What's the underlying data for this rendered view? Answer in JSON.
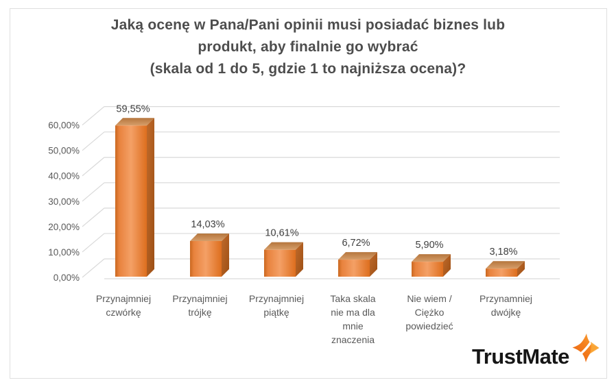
{
  "title": {
    "lines": [
      "Jaką ocenę w Pana/Pani opinii musi posiadać biznes lub",
      "produkt, aby finalnie go wybrać",
      "(skala od 1 do 5, gdzie 1 to najniższa ocena)?"
    ]
  },
  "chart_data": {
    "type": "bar",
    "style": "3d-column",
    "title": "Jaką ocenę w Pana/Pani opinii musi posiadać biznes lub produkt, aby finalnie go wybrać (skala od 1 do 5, gdzie 1 to najniższa ocena)?",
    "categories": [
      "Przynajmniej czwórkę",
      "Przynajmniej trójkę",
      "Przynajmniej piątkę",
      "Taka skala nie ma dla mnie znaczenia",
      "Nie wiem / Ciężko powiedzieć",
      "Przynamniej dwójkę"
    ],
    "categories_lines": [
      [
        "Przynajmniej",
        "czwórkę"
      ],
      [
        "Przynajmniej",
        "trójkę"
      ],
      [
        "Przynajmniej",
        "piątkę"
      ],
      [
        "Taka skala",
        "nie ma dla",
        "mnie",
        "znaczenia"
      ],
      [
        "Nie wiem /",
        "Ciężko",
        "powiedzieć"
      ],
      [
        "Przynamniej",
        "dwójkę"
      ]
    ],
    "values": [
      59.55,
      14.03,
      10.61,
      6.72,
      5.9,
      3.18
    ],
    "data_labels": [
      "59,55%",
      "14,03%",
      "10,61%",
      "6,72%",
      "5,90%",
      "3,18%"
    ],
    "xlabel": "",
    "ylabel": "",
    "ylim": [
      0,
      60
    ],
    "ytick_values": [
      0,
      10,
      20,
      30,
      40,
      50,
      60
    ],
    "ytick_labels": [
      "0,00%",
      "10,00%",
      "20,00%",
      "30,00%",
      "40,00%",
      "50,00%",
      "60,00%"
    ],
    "grid": true,
    "legend": false,
    "colors": {
      "bar_front_light": "#f4a066",
      "bar_front_mid": "#e8823d",
      "bar_front_dark": "#dd6e1e",
      "bar_front_edge": "#c96820",
      "bar_top_light": "#d69e6a",
      "bar_top_dark": "#b5763d",
      "bar_side_light": "#c06a2a",
      "bar_side_dark": "#9c4f15",
      "gridline": "#d9d9d9",
      "axis_text": "#595959",
      "data_label_text": "#404040",
      "title_text": "#4d4d4d"
    }
  },
  "logo": {
    "text": "TrustMate",
    "icon": "star-sparkle-icon",
    "icon_colors": {
      "primary": "#ee7113",
      "secondary": "#fbb041"
    }
  }
}
